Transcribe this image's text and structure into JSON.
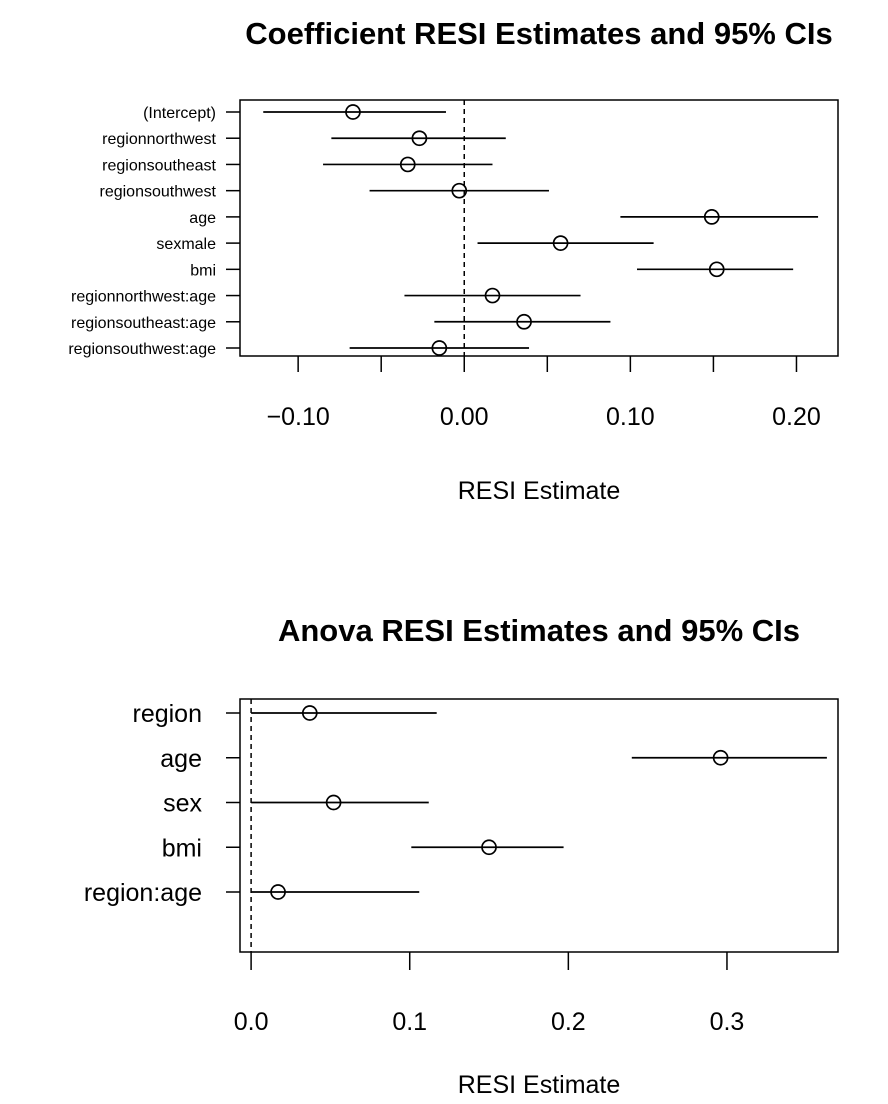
{
  "chart_data": [
    {
      "type": "scatter",
      "title": "Coefficient RESI Estimates and 95% CIs",
      "xlabel": "RESI Estimate",
      "ylabel": "",
      "xlim": [
        -0.135,
        0.225
      ],
      "xticks": [
        -0.1,
        -0.05,
        0.0,
        0.05,
        0.1,
        0.15,
        0.2
      ],
      "xtick_labels": [
        "−0.10",
        "",
        "0.00",
        "",
        "0.10",
        "",
        "0.20"
      ],
      "reference_line": 0,
      "categories": [
        "(Intercept)",
        "regionnorthwest",
        "regionsoutheast",
        "regionsouthwest",
        "age",
        "sexmale",
        "bmi",
        "regionnorthwest:age",
        "regionsoutheast:age",
        "regionsouthwest:age"
      ],
      "estimate": [
        -0.067,
        -0.027,
        -0.034,
        -0.003,
        0.149,
        0.058,
        0.152,
        0.017,
        0.036,
        -0.015
      ],
      "ci_lower": [
        -0.121,
        -0.08,
        -0.085,
        -0.057,
        0.094,
        0.008,
        0.104,
        -0.036,
        -0.018,
        -0.069
      ],
      "ci_upper": [
        -0.011,
        0.025,
        0.017,
        0.051,
        0.213,
        0.114,
        0.198,
        0.07,
        0.088,
        0.039
      ]
    },
    {
      "type": "scatter",
      "title": "Anova RESI Estimates and 95% CIs",
      "xlabel": "RESI Estimate",
      "ylabel": "",
      "xlim": [
        -0.007,
        0.37
      ],
      "xticks": [
        0.0,
        0.1,
        0.2,
        0.3
      ],
      "xtick_labels": [
        "0.0",
        "0.1",
        "0.2",
        "0.3"
      ],
      "reference_line": 0,
      "categories": [
        "region",
        "age",
        "sex",
        "bmi",
        "region:age"
      ],
      "estimate": [
        0.037,
        0.296,
        0.052,
        0.15,
        0.017
      ],
      "ci_lower": [
        0.0,
        0.24,
        0.0,
        0.101,
        0.0
      ],
      "ci_upper": [
        0.117,
        0.363,
        0.112,
        0.197,
        0.106
      ]
    }
  ]
}
